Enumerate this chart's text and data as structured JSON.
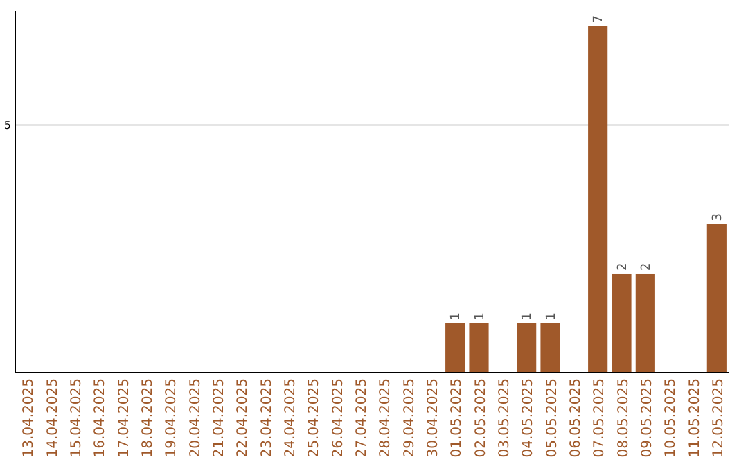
{
  "chart_data": {
    "type": "bar",
    "categories": [
      "13.04.2025",
      "14.04.2025",
      "15.04.2025",
      "16.04.2025",
      "17.04.2025",
      "18.04.2025",
      "19.04.2025",
      "20.04.2025",
      "21.04.2025",
      "22.04.2025",
      "23.04.2025",
      "24.04.2025",
      "25.04.2025",
      "26.04.2025",
      "27.04.2025",
      "28.04.2025",
      "29.04.2025",
      "30.04.2025",
      "01.05.2025",
      "02.05.2025",
      "03.05.2025",
      "04.05.2025",
      "05.05.2025",
      "06.05.2025",
      "07.05.2025",
      "08.05.2025",
      "09.05.2025",
      "10.05.2025",
      "11.05.2025",
      "12.05.2025"
    ],
    "values": [
      null,
      null,
      null,
      null,
      null,
      null,
      null,
      null,
      null,
      null,
      null,
      null,
      null,
      null,
      null,
      null,
      null,
      null,
      1,
      1,
      null,
      1,
      1,
      null,
      7,
      2,
      2,
      null,
      null,
      3
    ],
    "data_labels": true,
    "color": "#a0592a",
    "ylim": [
      0,
      7.3
    ],
    "ref_lines": [
      {
        "axis": "y",
        "value": 5,
        "label": "5",
        "color": "#cccccc"
      }
    ]
  }
}
